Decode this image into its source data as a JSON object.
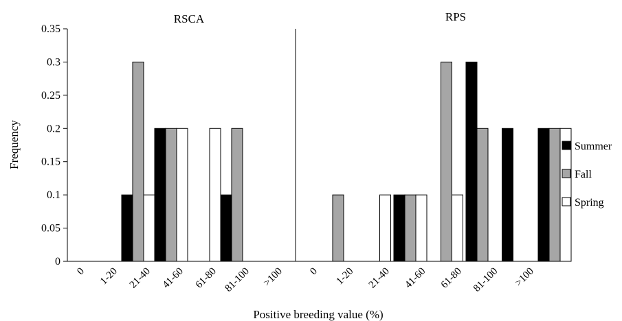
{
  "chart_data": {
    "type": "bar",
    "xlabel": "Positive breeding value (%)",
    "ylabel": "Frequency",
    "ylim": [
      0,
      0.35
    ],
    "yticks": [
      "0",
      "0.05",
      "0.1",
      "0.15",
      "0.2",
      "0.25",
      "0.3",
      "0.35"
    ],
    "legend_position": "right",
    "series": [
      {
        "name": "Summer",
        "color": "#000000"
      },
      {
        "name": "Fall",
        "color": "#a6a6a6"
      },
      {
        "name": "Spring",
        "color": "#ffffff"
      }
    ],
    "panels": [
      {
        "title": "RSCA",
        "categories": [
          "0",
          "1-20",
          "21-40",
          "41-60",
          "61-80",
          "81-100",
          ">100"
        ],
        "values": {
          "Summer": [
            0,
            0.1,
            0.2,
            0,
            0.1,
            0,
            0
          ],
          "Fall": [
            0,
            0.3,
            0.2,
            0,
            0.2,
            0,
            0
          ],
          "Spring": [
            0,
            0.1,
            0.2,
            0.2,
            0,
            0,
            0
          ]
        }
      },
      {
        "title": "RPS",
        "categories": [
          "0",
          "1-20",
          "21-40",
          "41-60",
          "61-80",
          "81-100",
          ">100"
        ],
        "values": {
          "Summer": [
            0,
            0,
            0.1,
            0,
            0.3,
            0.2,
            0.2
          ],
          "Fall": [
            0.1,
            0,
            0.1,
            0.3,
            0.2,
            0,
            0.2
          ],
          "Spring": [
            0,
            0.1,
            0.1,
            0.1,
            0,
            0,
            0.2
          ]
        }
      }
    ]
  }
}
